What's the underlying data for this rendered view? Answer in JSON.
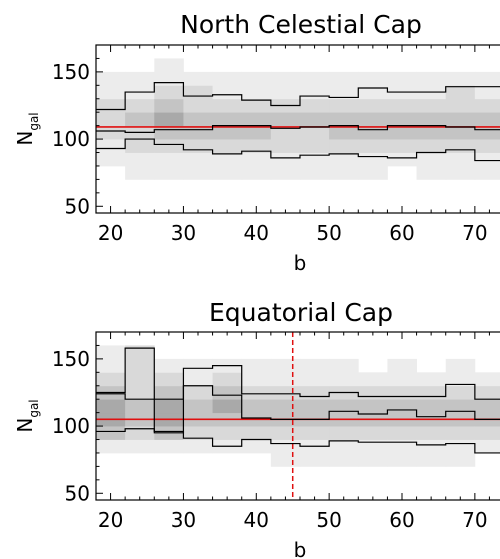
{
  "colors": {
    "reference_line": "#e01010",
    "vertical_marker": "#e01010",
    "histogram_line": "#000000",
    "density_scale": [
      "#ffffff",
      "#ececec",
      "#d9d9d9",
      "#c4c4c4",
      "#a9a9a9",
      "#909090"
    ]
  },
  "chart_data": [
    {
      "type": "heatmap",
      "title": "North Celestial Cap",
      "xlabel": "b",
      "ylabel": "N",
      "ylabel_subscript": "gal",
      "xlim": [
        18,
        74
      ],
      "ylim": [
        45,
        170
      ],
      "x_ticks": [
        20,
        30,
        40,
        50,
        60,
        70
      ],
      "y_ticks": [
        50,
        100,
        150
      ],
      "bin_edges": [
        18,
        22,
        26,
        30,
        34,
        38,
        42,
        46,
        50,
        54,
        58,
        62,
        66,
        70,
        74
      ],
      "density_y_edges": [
        70,
        80,
        90,
        100,
        110,
        120,
        130,
        140,
        150,
        160
      ],
      "density": [
        [
          0,
          1,
          1,
          2,
          2,
          2,
          1,
          1,
          0
        ],
        [
          1,
          1,
          2,
          2,
          3,
          2,
          1,
          1,
          0
        ],
        [
          1,
          1,
          2,
          3,
          4,
          3,
          2,
          1,
          1
        ],
        [
          1,
          1,
          2,
          3,
          3,
          2,
          2,
          1,
          0
        ],
        [
          1,
          1,
          2,
          3,
          3,
          2,
          1,
          1,
          0
        ],
        [
          1,
          1,
          2,
          3,
          3,
          2,
          1,
          1,
          0
        ],
        [
          1,
          1,
          2,
          2,
          3,
          2,
          1,
          1,
          0
        ],
        [
          1,
          1,
          2,
          2,
          3,
          2,
          1,
          1,
          0
        ],
        [
          1,
          1,
          2,
          3,
          3,
          2,
          1,
          1,
          0
        ],
        [
          1,
          1,
          2,
          3,
          3,
          2,
          1,
          1,
          0
        ],
        [
          0,
          1,
          2,
          3,
          3,
          2,
          1,
          1,
          0
        ],
        [
          1,
          1,
          2,
          3,
          3,
          2,
          1,
          1,
          0
        ],
        [
          1,
          1,
          2,
          3,
          3,
          2,
          2,
          1,
          0
        ],
        [
          1,
          1,
          2,
          3,
          3,
          2,
          1,
          1,
          0
        ]
      ],
      "series": [
        {
          "values": [
            122,
            135,
            142,
            132,
            133,
            129,
            125,
            132,
            131,
            138,
            135,
            135,
            139,
            139
          ]
        },
        {
          "values": [
            106,
            105,
            107,
            107,
            110,
            110,
            108,
            109,
            110,
            107,
            110,
            110,
            109,
            107
          ]
        },
        {
          "values": [
            93,
            100,
            96,
            92,
            89,
            91,
            86,
            88,
            89,
            87,
            86,
            90,
            92,
            84
          ]
        }
      ],
      "reference_y": 109,
      "vertical_marker_x": null
    },
    {
      "type": "heatmap",
      "title": "Equatorial Cap",
      "xlabel": "b",
      "ylabel": "N",
      "ylabel_subscript": "gal",
      "xlim": [
        18,
        74
      ],
      "ylim": [
        45,
        170
      ],
      "x_ticks": [
        20,
        30,
        40,
        50,
        60,
        70
      ],
      "y_ticks": [
        50,
        100,
        150
      ],
      "bin_edges": [
        18,
        22,
        26,
        30,
        34,
        38,
        42,
        46,
        50,
        54,
        58,
        62,
        66,
        70,
        74
      ],
      "density_y_edges": [
        60,
        70,
        80,
        90,
        100,
        110,
        120,
        130,
        140,
        150,
        160
      ],
      "density": [
        [
          0,
          0,
          1,
          3,
          4,
          4,
          3,
          2,
          1,
          1
        ],
        [
          0,
          0,
          1,
          2,
          3,
          3,
          2,
          2,
          2,
          2
        ],
        [
          0,
          0,
          1,
          3,
          4,
          4,
          3,
          2,
          1,
          0
        ],
        [
          0,
          0,
          1,
          2,
          3,
          3,
          2,
          1,
          1,
          0
        ],
        [
          0,
          0,
          1,
          2,
          3,
          4,
          3,
          2,
          1,
          0
        ],
        [
          0,
          0,
          1,
          2,
          3,
          3,
          2,
          1,
          1,
          0
        ],
        [
          0,
          1,
          1,
          2,
          3,
          3,
          2,
          1,
          1,
          0
        ],
        [
          0,
          1,
          1,
          2,
          3,
          3,
          2,
          1,
          1,
          0
        ],
        [
          0,
          1,
          1,
          2,
          3,
          3,
          2,
          1,
          1,
          0
        ],
        [
          0,
          1,
          1,
          2,
          3,
          3,
          2,
          1,
          0,
          0
        ],
        [
          0,
          1,
          1,
          2,
          3,
          3,
          2,
          1,
          1,
          0
        ],
        [
          0,
          1,
          1,
          2,
          3,
          3,
          2,
          1,
          0,
          0
        ],
        [
          0,
          1,
          1,
          2,
          3,
          3,
          2,
          1,
          1,
          0
        ],
        [
          0,
          0,
          1,
          2,
          3,
          3,
          2,
          1,
          0,
          0
        ]
      ],
      "series": [
        {
          "values": [
            125,
            158,
            120,
            143,
            145,
            124,
            124,
            122,
            125,
            122,
            122,
            122,
            131,
            120
          ]
        },
        {
          "values": [
            124,
            120,
            95,
            130,
            123,
            106,
            105,
            105,
            111,
            109,
            112,
            107,
            111,
            105
          ]
        },
        {
          "values": [
            96,
            98,
            96,
            91,
            85,
            90,
            87,
            85,
            89,
            88,
            88,
            86,
            87,
            80
          ]
        }
      ],
      "reference_y": 105,
      "vertical_marker_x": 45
    }
  ]
}
